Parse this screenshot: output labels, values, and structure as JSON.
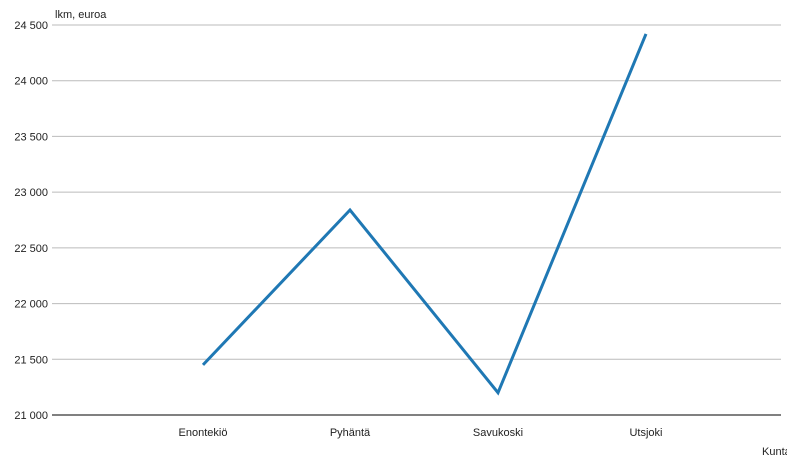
{
  "chart_data": {
    "type": "line",
    "ylabel": "lkm, euroa",
    "xlabel": "Kunta",
    "categories": [
      "Enontekiö",
      "Pyhäntä",
      "Savukoski",
      "Utsjoki"
    ],
    "series": [
      {
        "values": [
          21450,
          22840,
          21200,
          24420
        ]
      }
    ],
    "ylim": [
      21000,
      24500
    ],
    "yticks": [
      21000,
      21500,
      22000,
      22500,
      23000,
      23500,
      24000,
      24500
    ],
    "ytick_labels": [
      "21 000",
      "21 500",
      "22 000",
      "22 500",
      "23 000",
      "23 500",
      "24 000",
      "24 500"
    ],
    "grid": true,
    "colors": {
      "line": "#1f78b4",
      "grid": "#bbbbbb",
      "axis": "#000000"
    }
  }
}
